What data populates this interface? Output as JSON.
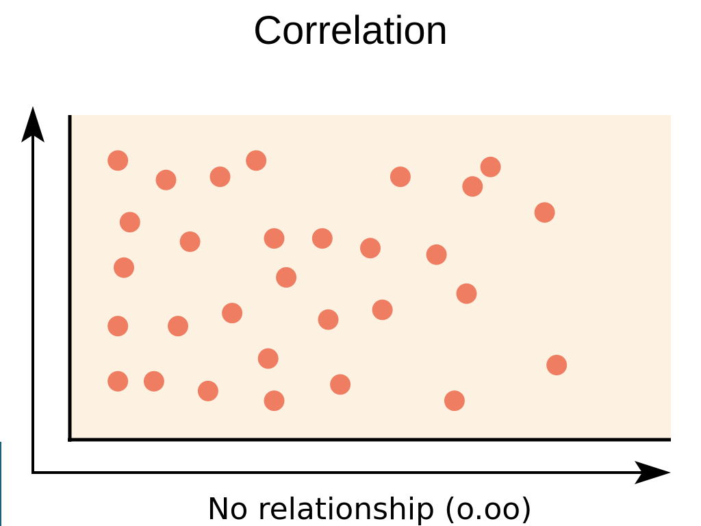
{
  "slide": {
    "title": "Correlation"
  },
  "colors": {
    "plot_background": "#fdf1e1",
    "point_fill": "#ef7d62",
    "axis": "#000000"
  },
  "chart_data": {
    "type": "scatter",
    "title": "Correlation",
    "caption": "No relationship (o.oo)",
    "xlabel": "",
    "ylabel": "",
    "xlim": [
      0,
      100
    ],
    "ylim": [
      0,
      100
    ],
    "grid": false,
    "legend": "none",
    "points": [
      {
        "x": 8,
        "y": 86
      },
      {
        "x": 16,
        "y": 80
      },
      {
        "x": 25,
        "y": 81
      },
      {
        "x": 31,
        "y": 86
      },
      {
        "x": 55,
        "y": 81
      },
      {
        "x": 67,
        "y": 78
      },
      {
        "x": 70,
        "y": 84
      },
      {
        "x": 79,
        "y": 70
      },
      {
        "x": 10,
        "y": 67
      },
      {
        "x": 20,
        "y": 61
      },
      {
        "x": 34,
        "y": 62
      },
      {
        "x": 42,
        "y": 62
      },
      {
        "x": 50,
        "y": 59
      },
      {
        "x": 61,
        "y": 57
      },
      {
        "x": 9,
        "y": 53
      },
      {
        "x": 36,
        "y": 50
      },
      {
        "x": 66,
        "y": 45
      },
      {
        "x": 27,
        "y": 39
      },
      {
        "x": 18,
        "y": 35
      },
      {
        "x": 8,
        "y": 35
      },
      {
        "x": 43,
        "y": 37
      },
      {
        "x": 52,
        "y": 40
      },
      {
        "x": 33,
        "y": 25
      },
      {
        "x": 81,
        "y": 23
      },
      {
        "x": 8,
        "y": 18
      },
      {
        "x": 14,
        "y": 18
      },
      {
        "x": 23,
        "y": 15
      },
      {
        "x": 45,
        "y": 17
      },
      {
        "x": 34,
        "y": 12
      },
      {
        "x": 64,
        "y": 12
      }
    ]
  }
}
